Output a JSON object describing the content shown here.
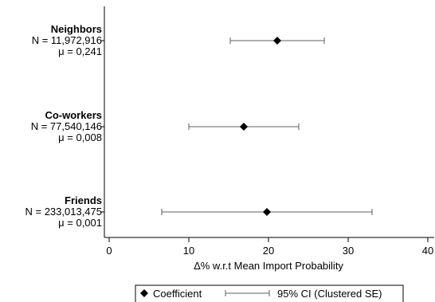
{
  "chart_data": {
    "type": "scatter",
    "xlabel": "Δ% w.r.t Mean Import Probability",
    "xlim": [
      0,
      40
    ],
    "xticks": [
      0,
      10,
      20,
      30,
      40
    ],
    "grid": false,
    "legend_position": "bottom-center",
    "legend": {
      "marker_label": "Coefficient",
      "ci_label": "95% CI (Clustered SE)"
    },
    "colors": {
      "marker": "#000000",
      "ci": "#7f7f7f",
      "axis": "#000000"
    },
    "series": [
      {
        "name": "Neighbors",
        "n_label": "N = 11,972,916",
        "mu_label": "μ = 0,241",
        "value": 21.1,
        "ci_low": 15.2,
        "ci_high": 27.0
      },
      {
        "name": "Co-workers",
        "n_label": "N = 77,540,146",
        "mu_label": "μ = 0,008",
        "value": 16.9,
        "ci_low": 10.0,
        "ci_high": 23.8
      },
      {
        "name": "Friends",
        "n_label": "N = 233,013,475",
        "mu_label": "μ = 0,001",
        "value": 19.8,
        "ci_low": 6.6,
        "ci_high": 33.0
      }
    ]
  }
}
